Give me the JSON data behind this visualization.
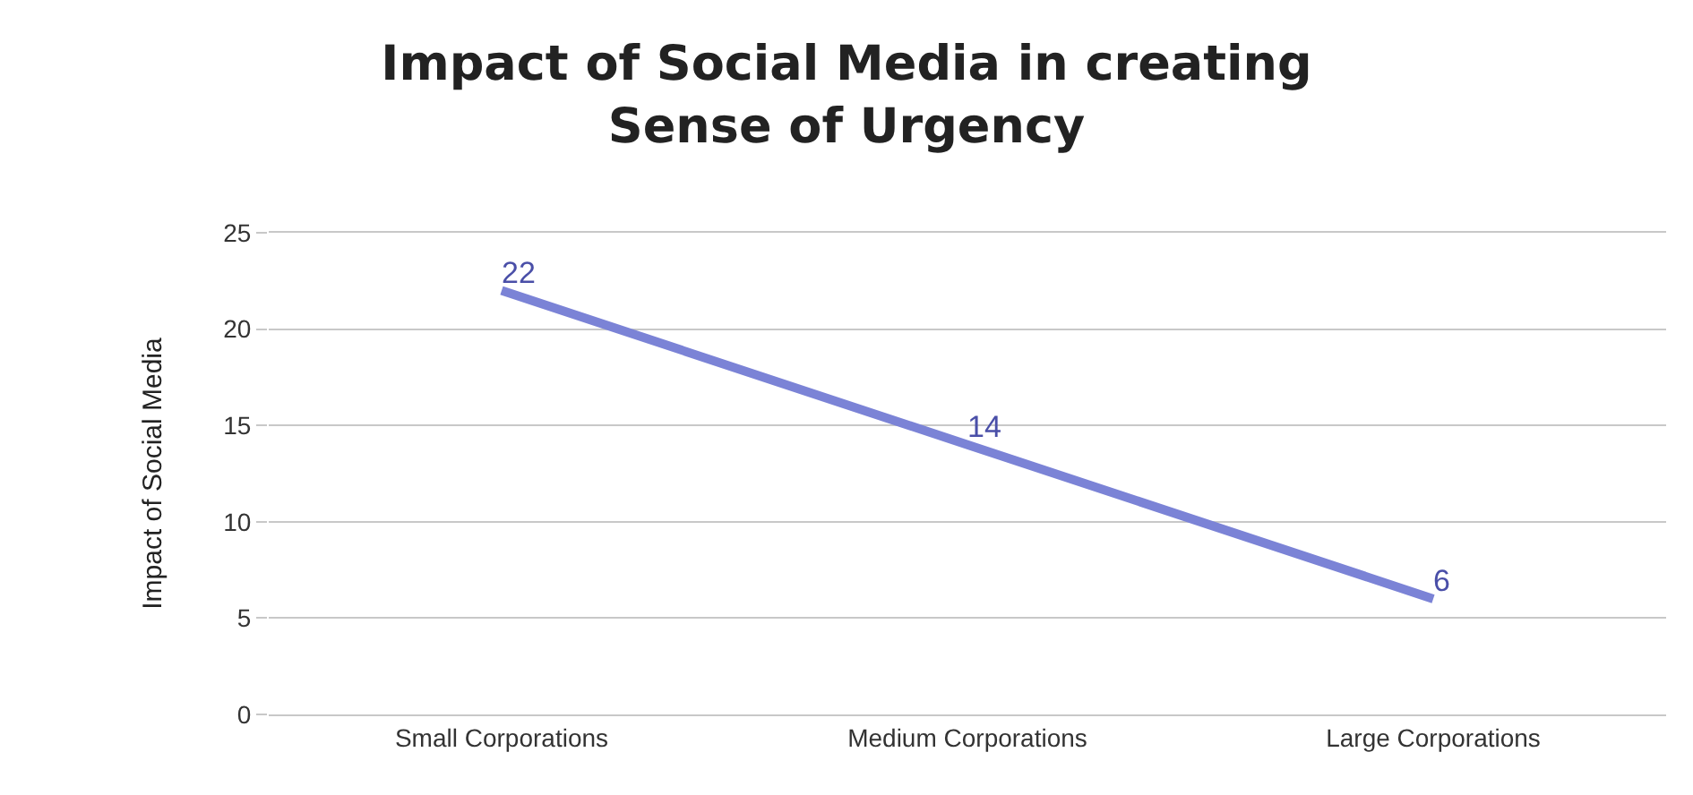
{
  "chart_data": {
    "type": "line",
    "title": "Impact of Social Media in creating\nSense of Urgency",
    "ylabel": "Impact of Social Media",
    "categories": [
      "Small Corporations",
      "Medium Corporations",
      "Large Corporations"
    ],
    "series": [
      {
        "color": "#7b83d6",
        "values": [
          22,
          14,
          6
        ]
      }
    ],
    "ylim": [
      0,
      25
    ],
    "yticks": [
      0,
      5,
      10,
      15,
      20,
      25
    ],
    "grid": "y",
    "data_labels": true,
    "marker": "none",
    "line_style": "solid"
  }
}
